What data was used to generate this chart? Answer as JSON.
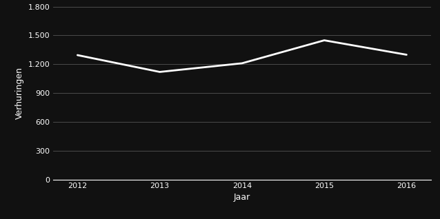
{
  "years": [
    2012,
    2013,
    2014,
    2015,
    2016
  ],
  "values": [
    1295,
    1120,
    1210,
    1449,
    1299
  ],
  "xlabel": "Jaar",
  "ylabel": "Verhuringen",
  "ylim": [
    0,
    1800
  ],
  "yticks": [
    0,
    300,
    600,
    900,
    1200,
    1500,
    1800
  ],
  "ytick_labels": [
    "0",
    "300",
    "600",
    "900",
    "1.200",
    "1.500",
    "1.800"
  ],
  "background_color": "#111111",
  "line_color": "#ffffff",
  "grid_color": "#555555",
  "text_color": "#ffffff",
  "line_width": 2.0
}
